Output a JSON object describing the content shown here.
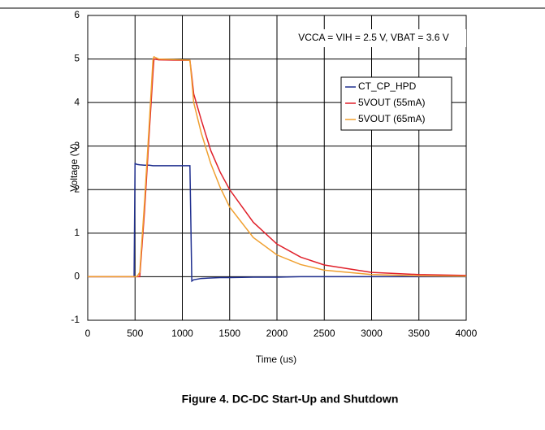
{
  "chart_data": {
    "type": "line",
    "annotation": "VCCA = VIH = 2.5 V, VBAT = 3.6 V",
    "xlabel": "Time (us)",
    "ylabel": "Voltage (V)",
    "caption": "Figure 4. DC-DC Start-Up and Shutdown",
    "x": [
      0,
      490,
      500,
      520,
      550,
      600,
      650,
      690,
      700,
      750,
      1000,
      1080,
      1100,
      1120,
      1200,
      1300,
      1400,
      1500,
      1750,
      2000,
      2250,
      2500,
      3000,
      3500,
      4000
    ],
    "series": [
      {
        "name": "CT_CP_HPD",
        "color": "#1f2f8f",
        "values": [
          0,
          0,
          2.6,
          2.58,
          2.57,
          2.56,
          2.56,
          2.55,
          2.55,
          2.55,
          2.55,
          2.55,
          -0.1,
          -0.07,
          -0.04,
          -0.03,
          -0.02,
          -0.02,
          -0.01,
          -0.01,
          0,
          0,
          0,
          0,
          0
        ]
      },
      {
        "name": "5VOUT (55mA)",
        "color": "#e0202a",
        "values": [
          0,
          0,
          0,
          0,
          0,
          1.5,
          3.3,
          4.7,
          5.0,
          4.98,
          4.97,
          4.97,
          4.6,
          4.2,
          3.6,
          2.9,
          2.4,
          2.0,
          1.25,
          0.75,
          0.45,
          0.27,
          0.1,
          0.05,
          0.03
        ]
      },
      {
        "name": "5VOUT (65mA)",
        "color": "#f0a030",
        "values": [
          0,
          0,
          0,
          0,
          0.1,
          1.7,
          3.5,
          5.0,
          5.05,
          5.0,
          4.98,
          4.97,
          4.5,
          4.0,
          3.3,
          2.6,
          2.05,
          1.6,
          0.9,
          0.5,
          0.28,
          0.15,
          0.05,
          0.02,
          0.01
        ]
      }
    ],
    "xlim": [
      0,
      4000
    ],
    "xticks": [
      0,
      500,
      1000,
      1500,
      2000,
      2500,
      3000,
      3500,
      4000
    ],
    "ylim": [
      -1,
      6
    ],
    "yticks": [
      -1,
      0,
      1,
      2,
      3,
      4,
      5,
      6
    ],
    "grid": true,
    "legend": "upper right"
  }
}
